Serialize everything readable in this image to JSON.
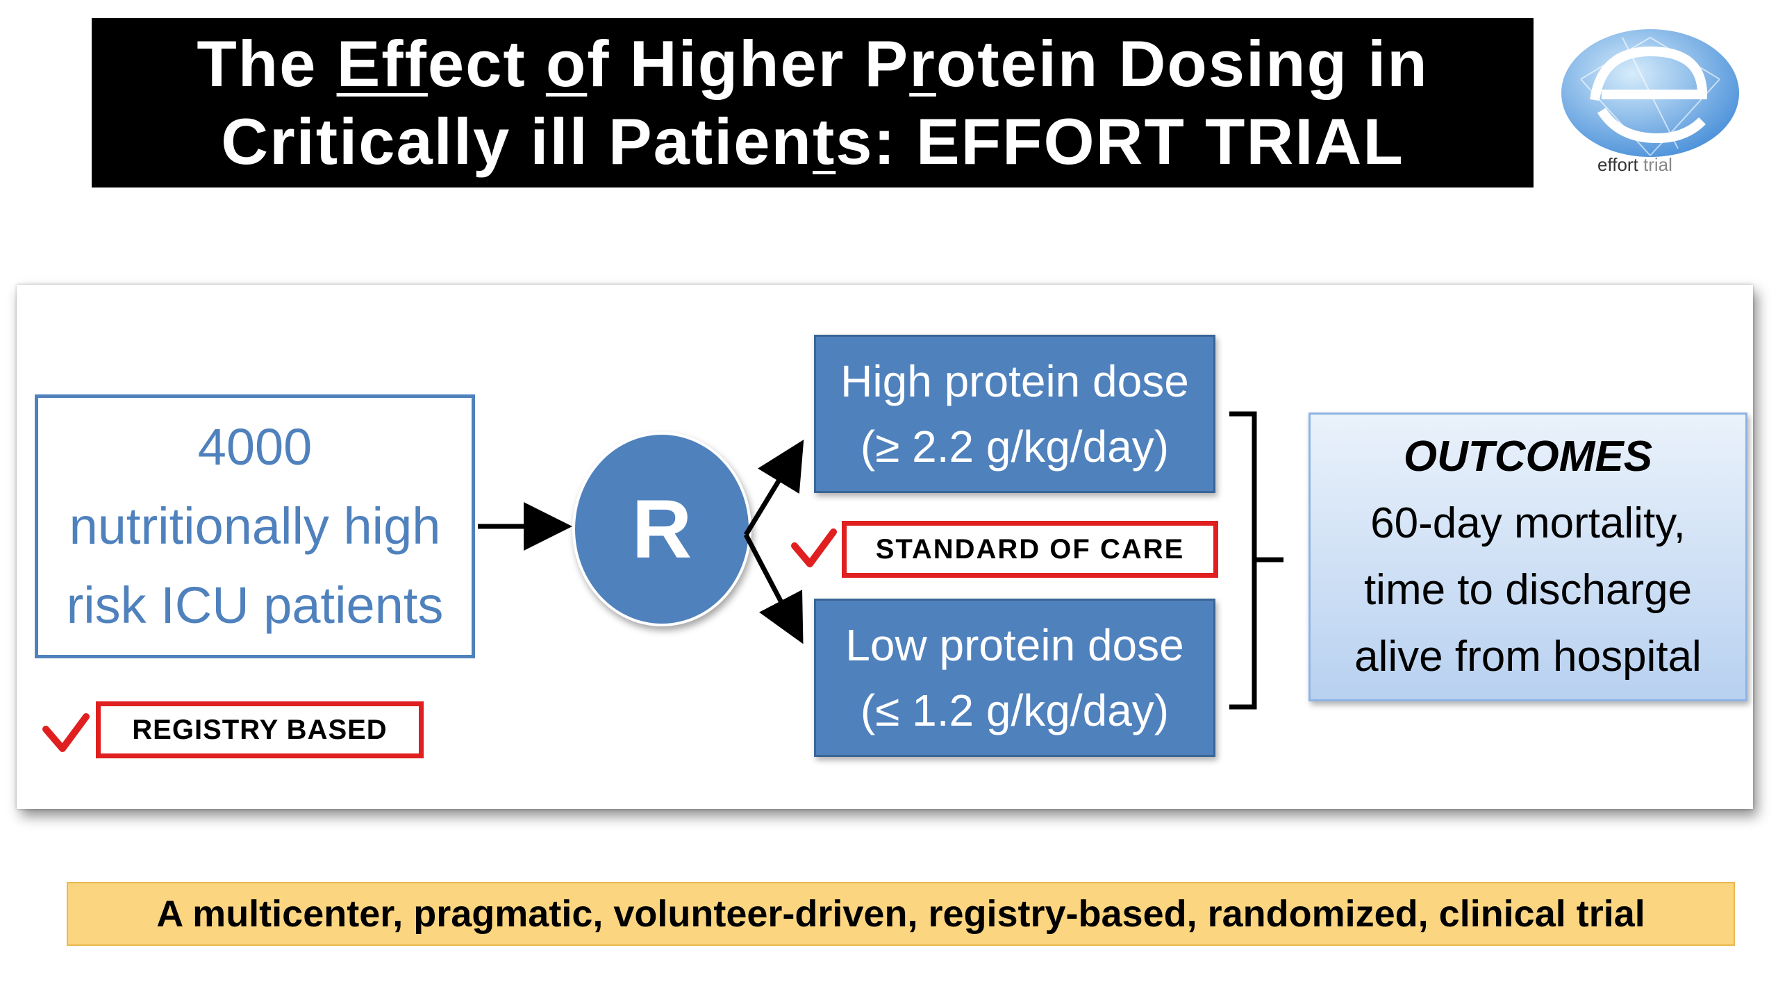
{
  "title": {
    "line1": [
      {
        "text": "The ",
        "u": false
      },
      {
        "text": "Eff",
        "u": true
      },
      {
        "text": "ect ",
        "u": false
      },
      {
        "text": "o",
        "u": true
      },
      {
        "text": "f Higher P",
        "u": false
      },
      {
        "text": "r",
        "u": true
      },
      {
        "text": "otein Dosing in",
        "u": false
      }
    ],
    "line2": [
      {
        "text": "Critically ill Patien",
        "u": false
      },
      {
        "text": "t",
        "u": true
      },
      {
        "text": "s: EFFORT TRIAL",
        "u": false
      }
    ]
  },
  "logo": {
    "text_bold": "effort",
    "text_light": "trial",
    "colors": {
      "main": "#4a90d9",
      "light": "#b9d9f5"
    }
  },
  "population_box": {
    "lines": [
      "4000",
      "nutritionally high",
      "risk ICU patients"
    ]
  },
  "randomization": {
    "label": "R"
  },
  "arms": {
    "high": {
      "line1": "High protein dose",
      "line2": "(≥ 2.2 g/kg/day)"
    },
    "low": {
      "line1": "Low protein dose",
      "line2": "(≤ 1.2 g/kg/day)"
    }
  },
  "labels": {
    "standard_of_care": "STANDARD OF CARE",
    "registry_based": "REGISTRY BASED"
  },
  "outcomes": {
    "heading": "OUTCOMES",
    "lines": [
      "60-day mortality,",
      "time to discharge",
      "alive from hospital"
    ]
  },
  "footer": {
    "text": "A multicenter, pragmatic, volunteer-driven, registry-based, randomized, clinical trial"
  },
  "colors": {
    "box_blue": "#4f81bd",
    "check_red": "#e02020",
    "footer_bg": "#fbd580",
    "outcome_bg": "#c6dbf2"
  }
}
